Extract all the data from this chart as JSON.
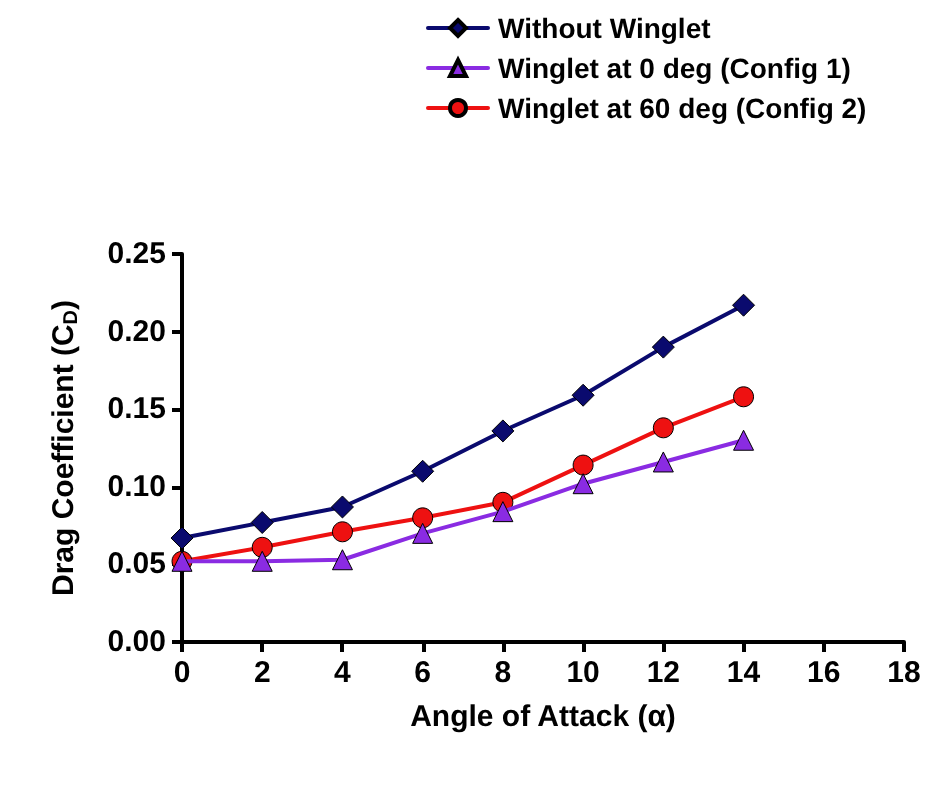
{
  "chart_data": {
    "type": "line",
    "xlabel": "Angle of Attack (α)",
    "ylabel": "Drag Coefficient (C$_{D}$)",
    "x": [
      0,
      2,
      4,
      6,
      8,
      10,
      12,
      14
    ],
    "series": [
      {
        "name": "Without Winglet",
        "color": "#0a0a6e",
        "marker": "diamond",
        "values": [
          0.067,
          0.077,
          0.087,
          0.11,
          0.136,
          0.159,
          0.19,
          0.217
        ]
      },
      {
        "name": "Winglet at 0 deg (Config 1)",
        "color": "#8a2be2",
        "marker": "triangle",
        "values": [
          0.052,
          0.052,
          0.053,
          0.07,
          0.084,
          0.102,
          0.116,
          0.13
        ]
      },
      {
        "name": "Winglet at 60 deg (Config 2)",
        "color": "#ee1111",
        "marker": "circle",
        "values": [
          0.052,
          0.061,
          0.071,
          0.08,
          0.09,
          0.114,
          0.138,
          0.158
        ]
      }
    ],
    "xlim": [
      0,
      18
    ],
    "xticks": [
      0,
      2,
      4,
      6,
      8,
      10,
      12,
      14,
      16,
      18
    ],
    "ylim": [
      0,
      0.25
    ],
    "yticks": [
      {
        "value": 0,
        "label": "0.00"
      },
      {
        "value": 0.05,
        "label": "0.05"
      },
      {
        "value": 0.1,
        "label": "0.10"
      },
      {
        "value": 0.15,
        "label": "0.15"
      },
      {
        "value": 0.2,
        "label": "0.20"
      },
      {
        "value": 0.25,
        "label": "0.25"
      }
    ],
    "grid": false,
    "legend": "top right"
  }
}
